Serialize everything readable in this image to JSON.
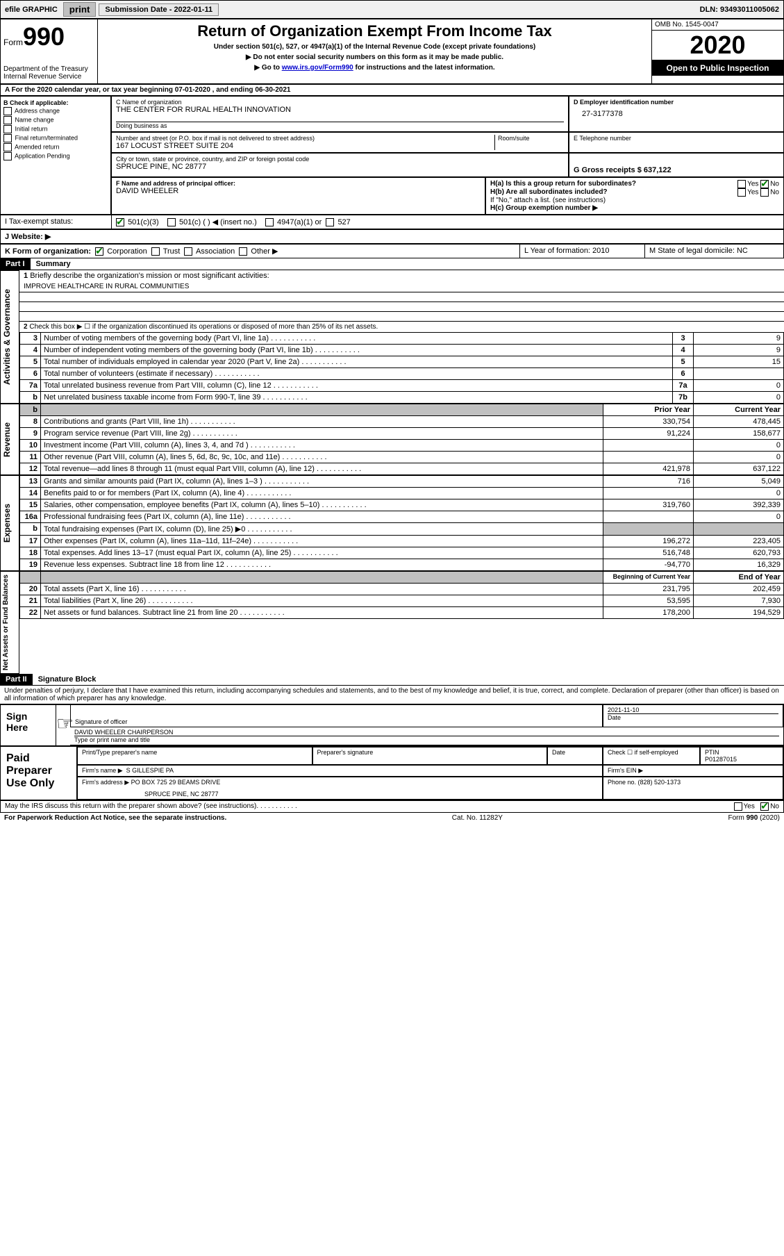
{
  "top_bar": {
    "efile_label": "efile GRAPHIC",
    "print_btn": "print",
    "sub_date_label": "Submission Date - 2022-01-11",
    "dln": "DLN: 93493011005062"
  },
  "header": {
    "form_label": "Form",
    "form_num": "990",
    "dept": "Department of the Treasury\nInternal Revenue Service",
    "title": "Return of Organization Exempt From Income Tax",
    "subtitle": "Under section 501(c), 527, or 4947(a)(1) of the Internal Revenue Code (except private foundations)",
    "note1": "▶ Do not enter social security numbers on this form as it may be made public.",
    "note2_pre": "▶ Go to ",
    "note2_link": "www.irs.gov/Form990",
    "note2_post": " for instructions and the latest information.",
    "omb": "OMB No. 1545-0047",
    "year": "2020",
    "open": "Open to Public Inspection"
  },
  "section_a": "A For the 2020 calendar year, or tax year beginning 07-01-2020   , and ending 06-30-2021",
  "section_b": {
    "label": "B Check if applicable:",
    "opts": [
      "Address change",
      "Name change",
      "Initial return",
      "Final return/terminated",
      "Amended return",
      "Application Pending"
    ]
  },
  "name_block": {
    "c_label": "C Name of organization",
    "org_name": "THE CENTER FOR RURAL HEALTH INNOVATION",
    "dba_label": "Doing business as",
    "addr_label": "Number and street (or P.O. box if mail is not delivered to street address)",
    "room_label": "Room/suite",
    "street": "167 LOCUST STREET SUITE 204",
    "city_label": "City or town, state or province, country, and ZIP or foreign postal code",
    "city": "SPRUCE PINE, NC  28777"
  },
  "ein_block": {
    "d_label": "D Employer identification number",
    "ein": "27-3177378",
    "e_label": "E Telephone number",
    "g_label": "G Gross receipts $ 637,122"
  },
  "f_block": {
    "f_label": "F  Name and address of principal officer:",
    "officer": "DAVID WHEELER"
  },
  "h_block": {
    "ha": "H(a)  Is this a group return for subordinates?",
    "hb": "H(b)  Are all subordinates included?",
    "hb_note": "If \"No,\" attach a list. (see instructions)",
    "hc": "H(c)  Group exemption number ▶",
    "yes": "Yes",
    "no": "No"
  },
  "i_block": {
    "i_label": "I   Tax-exempt status:",
    "opts": [
      "501(c)(3)",
      "501(c) (  ) ◀ (insert no.)",
      "4947(a)(1) or",
      "527"
    ]
  },
  "j_block": {
    "label": "J   Website: ▶"
  },
  "k_block": {
    "label": "K Form of organization:",
    "opts": [
      "Corporation",
      "Trust",
      "Association",
      "Other ▶"
    ],
    "l_label": "L Year of formation: 2010",
    "m_label": "M State of legal domicile: NC"
  },
  "part1": {
    "header": "Part I",
    "title": "Summary",
    "side_gov": "Activities & Governance",
    "side_rev": "Revenue",
    "side_exp": "Expenses",
    "side_net": "Net Assets or Fund Balances",
    "l1": "Briefly describe the organization's mission or most significant activities:",
    "mission": "IMPROVE HEALTHCARE IN RURAL COMMUNITIES",
    "l2": "Check this box ▶ ☐  if the organization discontinued its operations or disposed of more than 25% of its net assets.",
    "rows_gov": [
      {
        "n": "3",
        "d": "Number of voting members of the governing body (Part VI, line 1a)",
        "c": "3",
        "v": "9"
      },
      {
        "n": "4",
        "d": "Number of independent voting members of the governing body (Part VI, line 1b)",
        "c": "4",
        "v": "9"
      },
      {
        "n": "5",
        "d": "Total number of individuals employed in calendar year 2020 (Part V, line 2a)",
        "c": "5",
        "v": "15"
      },
      {
        "n": "6",
        "d": "Total number of volunteers (estimate if necessary)",
        "c": "6",
        "v": ""
      },
      {
        "n": "7a",
        "d": "Total unrelated business revenue from Part VIII, column (C), line 12",
        "c": "7a",
        "v": "0"
      },
      {
        "n": "b",
        "d": "Net unrelated business taxable income from Form 990-T, line 39",
        "c": "7b",
        "v": "0"
      }
    ],
    "col_prior": "Prior Year",
    "col_curr": "Current Year",
    "col_bcy": "Beginning of Current Year",
    "col_eoy": "End of Year",
    "rows_rev": [
      {
        "n": "8",
        "d": "Contributions and grants (Part VIII, line 1h)",
        "p": "330,754",
        "c": "478,445"
      },
      {
        "n": "9",
        "d": "Program service revenue (Part VIII, line 2g)",
        "p": "91,224",
        "c": "158,677"
      },
      {
        "n": "10",
        "d": "Investment income (Part VIII, column (A), lines 3, 4, and 7d )",
        "p": "",
        "c": "0"
      },
      {
        "n": "11",
        "d": "Other revenue (Part VIII, column (A), lines 5, 6d, 8c, 9c, 10c, and 11e)",
        "p": "",
        "c": "0"
      },
      {
        "n": "12",
        "d": "Total revenue—add lines 8 through 11 (must equal Part VIII, column (A), line 12)",
        "p": "421,978",
        "c": "637,122"
      }
    ],
    "rows_exp": [
      {
        "n": "13",
        "d": "Grants and similar amounts paid (Part IX, column (A), lines 1–3 )",
        "p": "716",
        "c": "5,049"
      },
      {
        "n": "14",
        "d": "Benefits paid to or for members (Part IX, column (A), line 4)",
        "p": "",
        "c": "0"
      },
      {
        "n": "15",
        "d": "Salaries, other compensation, employee benefits (Part IX, column (A), lines 5–10)",
        "p": "319,760",
        "c": "392,339"
      },
      {
        "n": "16a",
        "d": "Professional fundraising fees (Part IX, column (A), line 11e)",
        "p": "",
        "c": "0"
      },
      {
        "n": "b",
        "d": "Total fundraising expenses (Part IX, column (D), line 25) ▶0",
        "p": "",
        "c": "",
        "shade": true
      },
      {
        "n": "17",
        "d": "Other expenses (Part IX, column (A), lines 11a–11d, 11f–24e)",
        "p": "196,272",
        "c": "223,405"
      },
      {
        "n": "18",
        "d": "Total expenses. Add lines 13–17 (must equal Part IX, column (A), line 25)",
        "p": "516,748",
        "c": "620,793"
      },
      {
        "n": "19",
        "d": "Revenue less expenses. Subtract line 18 from line 12",
        "p": "-94,770",
        "c": "16,329"
      }
    ],
    "rows_net": [
      {
        "n": "20",
        "d": "Total assets (Part X, line 16)",
        "p": "231,795",
        "c": "202,459"
      },
      {
        "n": "21",
        "d": "Total liabilities (Part X, line 26)",
        "p": "53,595",
        "c": "7,930"
      },
      {
        "n": "22",
        "d": "Net assets or fund balances. Subtract line 21 from line 20",
        "p": "178,200",
        "c": "194,529"
      }
    ]
  },
  "part2": {
    "header": "Part II",
    "title": "Signature Block",
    "declaration": "Under penalties of perjury, I declare that I have examined this return, including accompanying schedules and statements, and to the best of my knowledge and belief, it is true, correct, and complete. Declaration of preparer (other than officer) is based on all information of which preparer has any knowledge."
  },
  "sign": {
    "sign_here": "Sign Here",
    "sig_officer": "Signature of officer",
    "date_label": "Date",
    "date_val": "2021-11-10",
    "name": "DAVID WHEELER  CHAIRPERSON",
    "type_label": "Type or print name and title"
  },
  "paid": {
    "label": "Paid Preparer Use Only",
    "pt_name": "Print/Type preparer's name",
    "pt_sig": "Preparer's signature",
    "date": "Date",
    "check_self": "Check ☐ if self-employed",
    "ptin_label": "PTIN",
    "ptin": "P01287015",
    "firm_name_label": "Firm's name   ▶",
    "firm_name": "S GILLESPIE PA",
    "firm_ein_label": "Firm's EIN ▶",
    "firm_addr_label": "Firm's address ▶",
    "firm_addr1": "PO BOX 725 29 BEAMS DRIVE",
    "firm_addr2": "SPRUCE PINE, NC  28777",
    "phone_label": "Phone no. (828) 520-1373"
  },
  "discuss": {
    "q": "May the IRS discuss this return with the preparer shown above? (see instructions)",
    "yes": "Yes",
    "no": "No"
  },
  "footer": {
    "paperwork": "For Paperwork Reduction Act Notice, see the separate instructions.",
    "catno": "Cat. No. 11282Y",
    "formno": "Form 990 (2020)"
  }
}
